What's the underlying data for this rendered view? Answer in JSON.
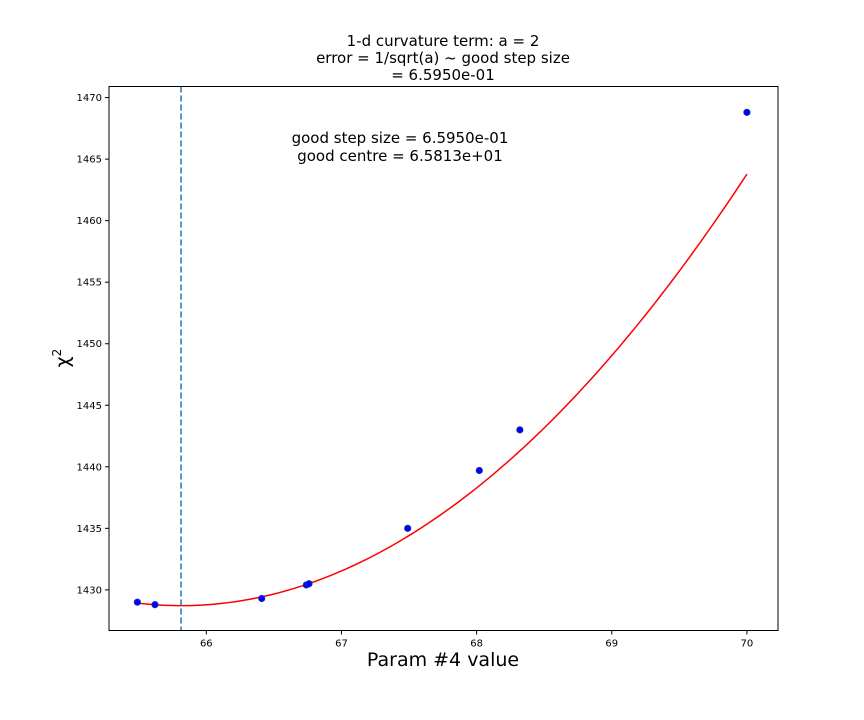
{
  "chart_data": {
    "type": "scatter",
    "title_lines": [
      "1-d curvature term: a = 2",
      "error = 1/sqrt(a) ~ good step size",
      "= 6.5950e-01"
    ],
    "annotation_lines": [
      "good step size = 6.5950e-01",
      "good centre = 6.5813e+01"
    ],
    "xlabel": "Param #4 value",
    "ylabel": "χ",
    "ylabel_superscript": "2",
    "xlim": [
      65.28,
      70.23
    ],
    "ylim": [
      1426.7,
      1470.9
    ],
    "xticks": [
      66,
      67,
      68,
      69,
      70
    ],
    "yticks": [
      1430,
      1435,
      1440,
      1445,
      1450,
      1455,
      1460,
      1465,
      1470
    ],
    "grid": false,
    "series": [
      {
        "kind": "points",
        "color": "#0000ff",
        "edge_color": "#1f3a93",
        "x": [
          65.49,
          65.62,
          66.41,
          66.74,
          66.76,
          67.49,
          68.02,
          68.32,
          70.0
        ],
        "y": [
          1429.0,
          1428.8,
          1429.3,
          1430.4,
          1430.5,
          1435.0,
          1439.7,
          1443.0,
          1468.8
        ]
      },
      {
        "kind": "fit-curve",
        "color": "#ff0000",
        "model": "quadratic",
        "centre": 65.813,
        "min_value": 1428.72,
        "curvature": 2.0,
        "x_range": [
          65.49,
          70.0
        ]
      },
      {
        "kind": "vline",
        "color": "#1f77b4",
        "style": "dashed",
        "x": 65.813
      }
    ]
  }
}
